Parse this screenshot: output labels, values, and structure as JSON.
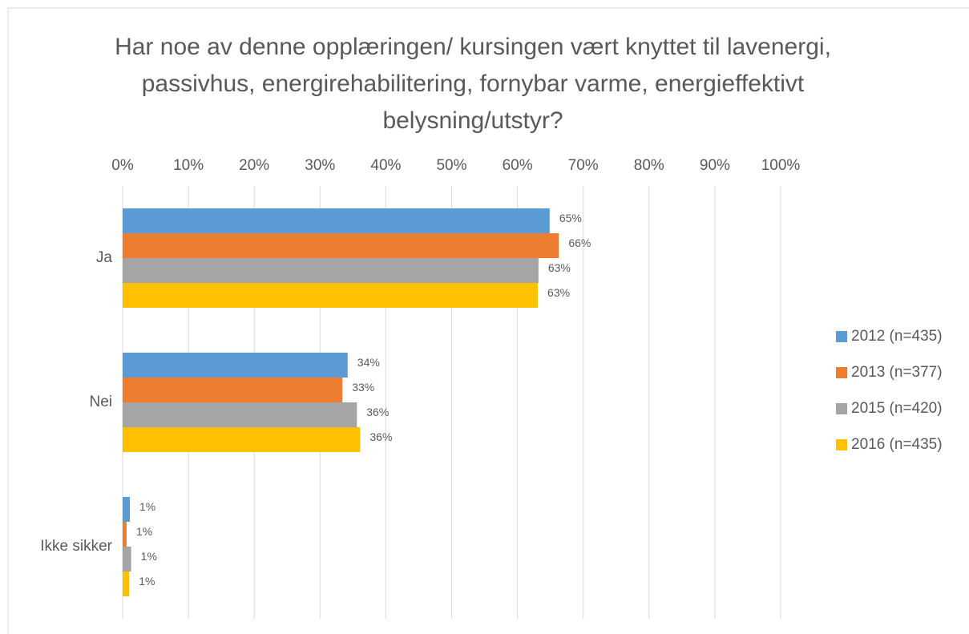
{
  "chart_data": {
    "type": "hbar",
    "title": "Har noe av denne opplæringen/ kursingen vært knyttet til lavenergi, passivhus, energirehabilitering, fornybar varme, energieffektivt belysning/utstyr?",
    "categories": [
      "Ja",
      "Nei",
      "Ikke sikker"
    ],
    "series": [
      {
        "name": "2012 (n=435)",
        "color": "#5b9bd5",
        "values": [
          64.9,
          34.2,
          1.1
        ],
        "value_labels": [
          "65%",
          "34%",
          "1%"
        ]
      },
      {
        "name": "2013 (n=377)",
        "color": "#ed7d31",
        "values": [
          66.3,
          33.4,
          0.6
        ],
        "value_labels": [
          "66%",
          "33%",
          "1%"
        ]
      },
      {
        "name": "2015 (n=420)",
        "color": "#a5a5a5",
        "values": [
          63.2,
          35.6,
          1.3
        ],
        "value_labels": [
          "63%",
          "36%",
          "1%"
        ]
      },
      {
        "name": "2016 (n=435)",
        "color": "#ffc000",
        "values": [
          63.1,
          36.1,
          1.0
        ],
        "value_labels": [
          "63%",
          "36%",
          "1%"
        ]
      }
    ],
    "xlim": [
      0,
      100
    ],
    "xticks": [
      {
        "value": 0,
        "label": "0%"
      },
      {
        "value": 10,
        "label": "10%"
      },
      {
        "value": 20,
        "label": "20%"
      },
      {
        "value": 30,
        "label": "30%"
      },
      {
        "value": 40,
        "label": "40%"
      },
      {
        "value": 50,
        "label": "50%"
      },
      {
        "value": 60,
        "label": "60%"
      },
      {
        "value": 70,
        "label": "70%"
      },
      {
        "value": 80,
        "label": "80%"
      },
      {
        "value": 90,
        "label": "90%"
      },
      {
        "value": 100,
        "label": "100%"
      }
    ],
    "grid": true,
    "legend": "right"
  }
}
